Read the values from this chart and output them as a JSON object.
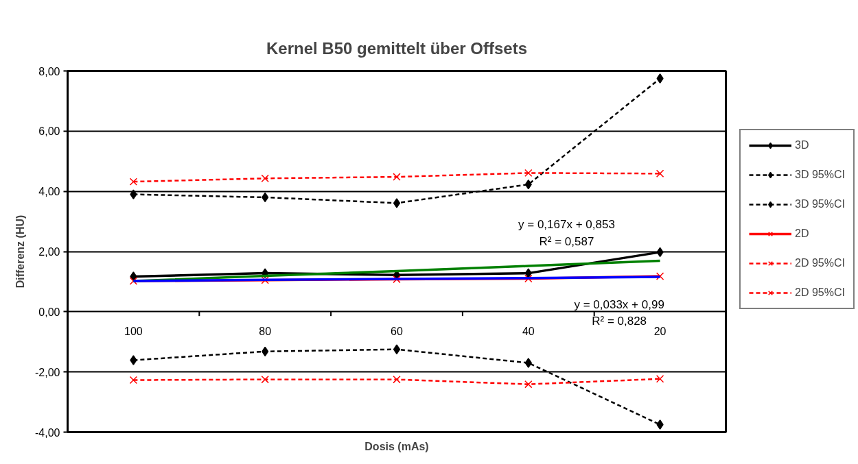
{
  "chart_data": {
    "type": "line",
    "title": "Kernel B50 gemittelt über Offsets",
    "xlabel": "Dosis (mAs)",
    "ylabel": "Differenz (HU)",
    "categories": [
      "100",
      "80",
      "60",
      "40",
      "20"
    ],
    "series": [
      {
        "name": "3D",
        "color": "#000000",
        "marker": "diamond",
        "line_style": "solid",
        "values": [
          1.17,
          1.28,
          1.22,
          1.28,
          1.98
        ]
      },
      {
        "name": "3D 95%CI",
        "color": "#000000",
        "marker": "diamond",
        "line_style": "dashed",
        "values": [
          3.9,
          3.8,
          3.61,
          4.23,
          7.75
        ]
      },
      {
        "name": "3D 95%CI",
        "color": "#000000",
        "marker": "diamond",
        "line_style": "dashed",
        "values": [
          -1.61,
          -1.32,
          -1.25,
          -1.7,
          -3.75
        ]
      },
      {
        "name": "2D",
        "color": "#ff0000",
        "marker": "cross",
        "line_style": "solid",
        "values": [
          1.02,
          1.05,
          1.08,
          1.1,
          1.18
        ]
      },
      {
        "name": "2D 95%CI",
        "color": "#ff0000",
        "marker": "cross",
        "line_style": "dashed",
        "values": [
          4.32,
          4.43,
          4.48,
          4.61,
          4.59
        ]
      },
      {
        "name": "2D 95%CI",
        "color": "#ff0000",
        "marker": "cross",
        "line_style": "dashed",
        "values": [
          -2.27,
          -2.25,
          -2.25,
          -2.41,
          -2.23
        ]
      },
      {
        "color": "#008000",
        "marker": "none",
        "line_style": "solid",
        "values": [
          1.02,
          1.19,
          1.35,
          1.52,
          1.69
        ]
      },
      {
        "color": "#0000ff",
        "marker": "none",
        "line_style": "solid",
        "values": [
          1.02,
          1.06,
          1.09,
          1.12,
          1.16
        ]
      }
    ],
    "ylim": [
      -4,
      8
    ],
    "yticks": [
      {
        "value": -4,
        "label": "-4,00"
      },
      {
        "value": -2,
        "label": "-2,00"
      },
      {
        "value": 0,
        "label": "0,00"
      },
      {
        "value": 2,
        "label": "2,00"
      },
      {
        "value": 4,
        "label": "4,00"
      },
      {
        "value": 6,
        "label": "6,00"
      },
      {
        "value": 8,
        "label": "8,00"
      }
    ],
    "grid": "y",
    "legend": "right",
    "annotations": [
      "y = 0,167x + 0,853",
      "R² = 0,587",
      "y = 0,033x + 0,99",
      "R² = 0,828"
    ]
  }
}
